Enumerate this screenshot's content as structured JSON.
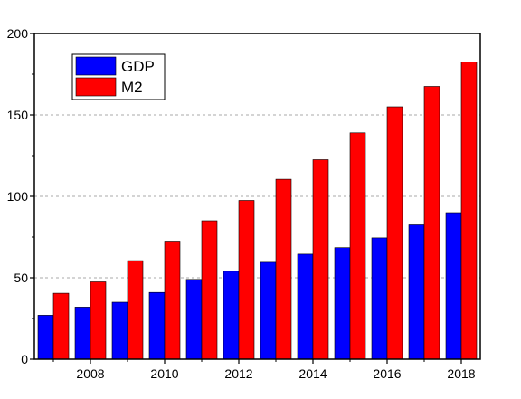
{
  "chart_data": {
    "type": "bar",
    "title": "",
    "xlabel": "",
    "ylabel": "",
    "categories": [
      "2007",
      "2008",
      "2009",
      "2010",
      "2011",
      "2012",
      "2013",
      "2014",
      "2015",
      "2016",
      "2017",
      "2018"
    ],
    "x_tick_labels": [
      "2008",
      "2010",
      "2012",
      "2014",
      "2016",
      "2018"
    ],
    "y_tick_labels": [
      "0",
      "50",
      "100",
      "150",
      "200"
    ],
    "ylim": [
      0,
      200
    ],
    "grid": "horizontal dashed",
    "legend_position": "top-left",
    "series": [
      {
        "name": "GDP",
        "color": "#0000ff",
        "values": [
          27,
          32,
          35,
          41,
          49,
          54,
          59.5,
          64.5,
          68.5,
          74.5,
          82.5,
          90
        ]
      },
      {
        "name": "M2",
        "color": "#ff0000",
        "values": [
          40.5,
          47.5,
          60.5,
          72.5,
          85,
          97.5,
          110.5,
          122.5,
          139,
          155,
          167.5,
          182.5
        ]
      }
    ]
  }
}
